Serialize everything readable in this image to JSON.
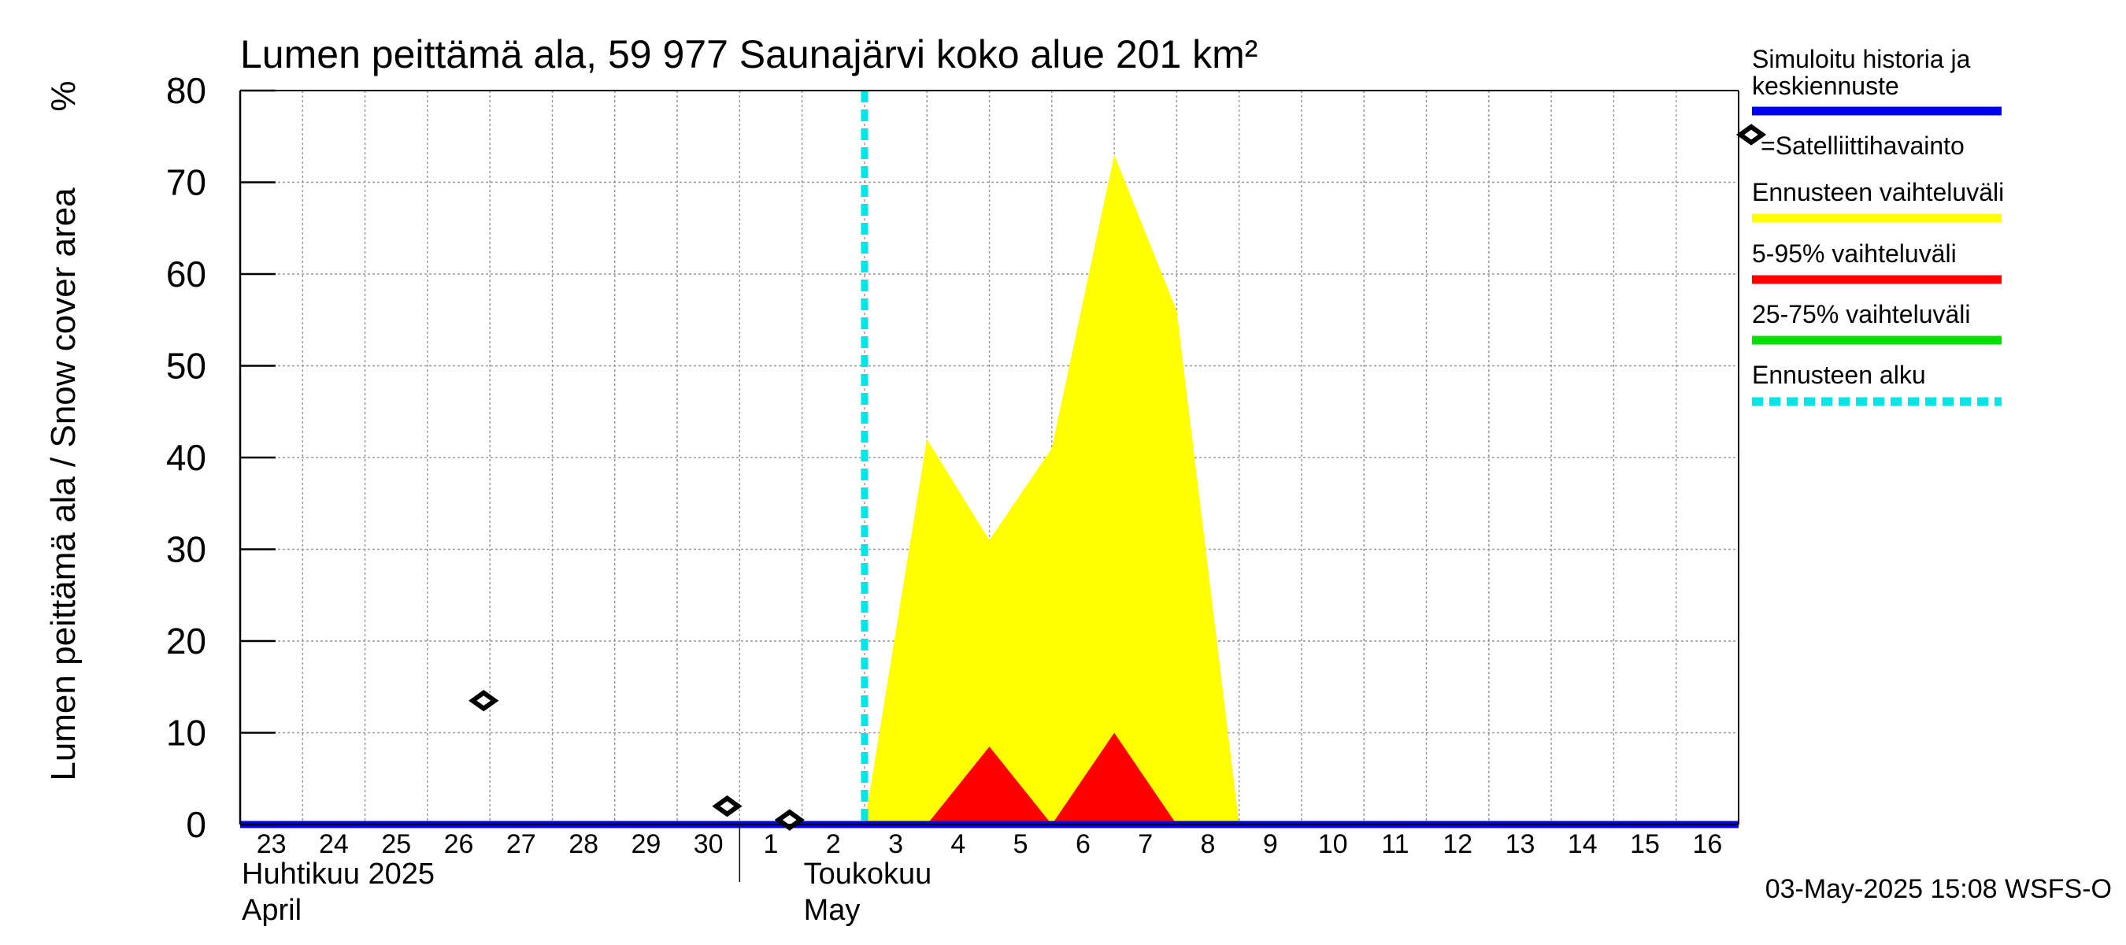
{
  "chart_data": {
    "type": "area",
    "title": "Lumen peittämä ala, 59 977 Saunajärvi koko alue 201 km²",
    "ylabel": "Lumen peittämä ala / Snow cover area",
    "yunit": "%",
    "ylim": [
      0,
      80
    ],
    "yticks": [
      0,
      10,
      20,
      30,
      40,
      50,
      60,
      70,
      80
    ],
    "xlim": [
      23,
      47
    ],
    "x_tick_labels": [
      "23",
      "24",
      "25",
      "26",
      "27",
      "28",
      "29",
      "30",
      "1",
      "2",
      "3",
      "4",
      "5",
      "6",
      "7",
      "8",
      "9",
      "10",
      "11",
      "12",
      "13",
      "14",
      "15",
      "16"
    ],
    "month_labels": [
      {
        "fi": "Huhtikuu  2025",
        "en": "April",
        "x": 23
      },
      {
        "fi": "Toukokuu",
        "en": "May",
        "x": 32
      }
    ],
    "month_boundary_x": 31,
    "grid": true,
    "forecast_start_x": 33.0,
    "series": [
      {
        "name": "Simuloitu historia ja keskiennuste",
        "color": "#0000ee",
        "x": [
          23,
          47
        ],
        "values": [
          0,
          0
        ]
      },
      {
        "name": "Ennusteen vaihteluväli",
        "color": "#ffff00",
        "x": [
          33.0,
          34.0,
          35.0,
          36.0,
          37.0,
          38.0,
          39.0
        ],
        "values": [
          0,
          42,
          31,
          41,
          73,
          56,
          0
        ]
      },
      {
        "name": "5-95% vaihteluväli",
        "color": "#ff0000",
        "x": [
          34.0,
          35.0,
          36.0,
          37.0,
          38.0
        ],
        "values": [
          0,
          8.5,
          0,
          10,
          0
        ]
      },
      {
        "name": "25-75% vaihteluväli",
        "color": "#00dd00",
        "x": [],
        "values": []
      }
    ],
    "satellite_observations": {
      "label": "=Satelliittihavainto",
      "x": [
        26.9,
        30.8,
        31.8
      ],
      "values": [
        13.5,
        2,
        0.5
      ]
    },
    "legend": [
      {
        "label": "Simuloitu historia ja keskiennuste",
        "color": "#0000ee",
        "style": "solid"
      },
      {
        "label": "=Satelliittihavainto",
        "color": "#000000",
        "style": "diamond"
      },
      {
        "label": "Ennusteen vaihteluväli",
        "color": "#ffff00",
        "style": "solid"
      },
      {
        "label": "5-95% vaihteluväli",
        "color": "#ff0000",
        "style": "solid"
      },
      {
        "label": "25-75% vaihteluväli",
        "color": "#00dd00",
        "style": "solid"
      },
      {
        "label": "Ennusteen alku",
        "color": "#00e5e5",
        "style": "dashed"
      }
    ],
    "legend_position": "right",
    "timestamp": "03-May-2025 15:08 WSFS-O"
  }
}
